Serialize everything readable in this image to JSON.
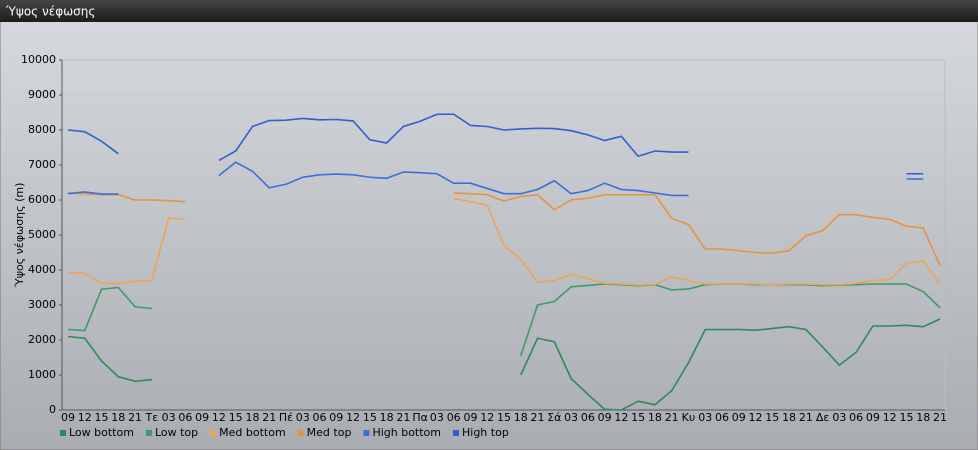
{
  "chart_data": {
    "type": "line",
    "title": "Ύψος νέφωσης",
    "y_label": "Ύψος νέφωσης (m)",
    "categories": [
      "09",
      "12",
      "15",
      "18",
      "21",
      "Τε",
      "03",
      "06",
      "09",
      "12",
      "15",
      "18",
      "21",
      "Πέ",
      "03",
      "06",
      "09",
      "12",
      "15",
      "18",
      "21",
      "Πα",
      "03",
      "06",
      "09",
      "12",
      "15",
      "18",
      "21",
      "Σά",
      "03",
      "06",
      "09",
      "12",
      "15",
      "18",
      "21",
      "Κυ",
      "03",
      "06",
      "09",
      "12",
      "15",
      "18",
      "21",
      "Δε",
      "03",
      "06",
      "09",
      "12",
      "15",
      "18",
      "21"
    ],
    "ylim": [
      0,
      10000
    ],
    "yticks": [
      0,
      1000,
      2000,
      3000,
      4000,
      5000,
      6000,
      7000,
      8000,
      9000,
      10000
    ],
    "grid": true,
    "legend": "bottom",
    "series": [
      {
        "name": "Low bottom",
        "color": "#2b8a57",
        "values": [
          2100,
          2050,
          1400,
          950,
          820,
          870,
          null,
          null,
          null,
          null,
          null,
          null,
          null,
          null,
          null,
          null,
          null,
          null,
          null,
          null,
          null,
          null,
          null,
          null,
          null,
          null,
          null,
          1000,
          2050,
          1950,
          900,
          450,
          20,
          0,
          250,
          150,
          550,
          1350,
          2300,
          2300,
          2300,
          2280,
          2330,
          2380,
          2300,
          1800,
          1280,
          1650,
          2400,
          2400,
          2420,
          2380,
          2600
        ]
      },
      {
        "name": "Low top",
        "color": "#3c9a6c",
        "values": [
          2300,
          2270,
          3450,
          3500,
          2950,
          2900,
          null,
          null,
          null,
          null,
          null,
          null,
          null,
          null,
          null,
          null,
          null,
          null,
          null,
          null,
          null,
          null,
          null,
          null,
          null,
          null,
          null,
          1550,
          3000,
          3100,
          3520,
          3560,
          3600,
          3580,
          3550,
          3580,
          3430,
          3460,
          3580,
          3600,
          3600,
          3580,
          3580,
          3580,
          3580,
          3550,
          3570,
          3580,
          3600,
          3600,
          3600,
          3380,
          2920
        ]
      },
      {
        "name": "Med bottom",
        "color": "#f0a355",
        "values": [
          3930,
          3900,
          3620,
          3620,
          3680,
          3700,
          5480,
          5450,
          null,
          null,
          null,
          null,
          null,
          null,
          null,
          null,
          null,
          null,
          null,
          null,
          null,
          null,
          null,
          6050,
          5950,
          5850,
          4700,
          4300,
          3650,
          3700,
          3880,
          3750,
          3620,
          3600,
          3570,
          3590,
          3800,
          3700,
          3600,
          3600,
          3600,
          3600,
          3580,
          3600,
          3600,
          3580,
          3580,
          3620,
          3700,
          3720,
          4200,
          4250,
          3600
        ]
      },
      {
        "name": "Med top",
        "color": "#e8923e",
        "values": [
          6200,
          6180,
          6150,
          6150,
          6000,
          6000,
          5980,
          5950,
          null,
          null,
          null,
          null,
          null,
          null,
          null,
          null,
          null,
          null,
          null,
          null,
          null,
          null,
          null,
          6200,
          6180,
          6150,
          5970,
          6100,
          6150,
          5720,
          6000,
          6050,
          6150,
          6150,
          6150,
          6150,
          5480,
          5300,
          4600,
          4600,
          4550,
          4500,
          4480,
          4550,
          4980,
          5120,
          5580,
          5580,
          5500,
          5450,
          5250,
          5200,
          4130
        ]
      },
      {
        "name": "High bottom",
        "color": "#3a6fd8",
        "values": [
          6180,
          6230,
          6170,
          6170,
          null,
          null,
          null,
          null,
          null,
          6700,
          7080,
          6820,
          6350,
          6450,
          6650,
          6720,
          6740,
          6720,
          6650,
          6620,
          6800,
          6780,
          6750,
          6480,
          6480,
          6330,
          6180,
          6180,
          6300,
          6550,
          6180,
          6270,
          6480,
          6300,
          6270,
          6200,
          6130,
          6130,
          null,
          null,
          null,
          null,
          null,
          null,
          null,
          null,
          null,
          null,
          null,
          null,
          6600,
          6600,
          null
        ]
      },
      {
        "name": "High top",
        "color": "#2f5fd0",
        "values": [
          8000,
          7950,
          7680,
          7320,
          null,
          null,
          null,
          null,
          null,
          7130,
          7400,
          8100,
          8270,
          8280,
          8330,
          8290,
          8300,
          8260,
          7720,
          7630,
          8100,
          8250,
          8450,
          8450,
          8130,
          8100,
          8000,
          8030,
          8050,
          8040,
          7980,
          7860,
          7700,
          7820,
          7250,
          7400,
          7370,
          7370,
          null,
          null,
          null,
          null,
          null,
          null,
          null,
          null,
          null,
          null,
          null,
          null,
          6750,
          6750,
          null
        ]
      }
    ]
  }
}
